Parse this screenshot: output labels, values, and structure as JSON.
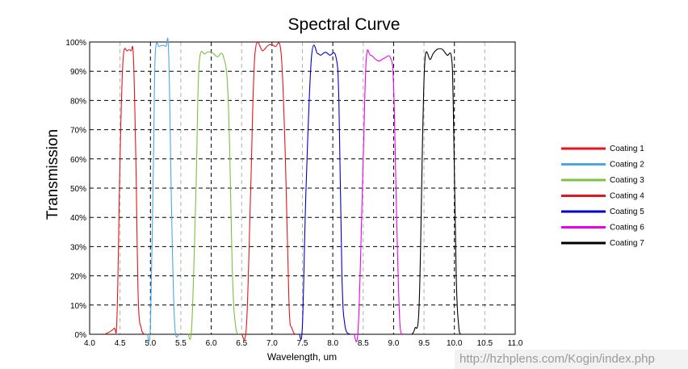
{
  "chart_data": {
    "type": "line",
    "title": "Spectral Curve",
    "xlabel": "Wavelength, um",
    "ylabel": "Transmission",
    "xlim": [
      4.0,
      11.0
    ],
    "ylim": [
      0,
      100
    ],
    "x_ticks": [
      "4.0",
      "4.5",
      "5.0",
      "5.5",
      "6.0",
      "6.5",
      "7.0",
      "7.5",
      "8.0",
      "8.5",
      "9.0",
      "9.5",
      "10.0",
      "10.5",
      "11.0"
    ],
    "y_ticks": [
      "0%",
      "10%",
      "20%",
      "30%",
      "40%",
      "50%",
      "60%",
      "70%",
      "80%",
      "90%",
      "100%"
    ],
    "grid": true,
    "legend_position": "right",
    "series": [
      {
        "name": "Coating 1",
        "color": "#e8141c",
        "points": [
          [
            4.25,
            0
          ],
          [
            4.4,
            2
          ],
          [
            4.45,
            6
          ],
          [
            4.5,
            60
          ],
          [
            4.55,
            94
          ],
          [
            4.62,
            97
          ],
          [
            4.68,
            97
          ],
          [
            4.72,
            95
          ],
          [
            4.76,
            60
          ],
          [
            4.8,
            12
          ],
          [
            4.85,
            2
          ],
          [
            4.9,
            0
          ]
        ]
      },
      {
        "name": "Coating 2",
        "color": "#4aa8e8",
        "points": [
          [
            4.95,
            0
          ],
          [
            5.0,
            3
          ],
          [
            5.05,
            60
          ],
          [
            5.08,
            96
          ],
          [
            5.15,
            98.5
          ],
          [
            5.25,
            98.5
          ],
          [
            5.3,
            96
          ],
          [
            5.35,
            40
          ],
          [
            5.4,
            3
          ],
          [
            5.47,
            0
          ]
        ]
      },
      {
        "name": "Coating 3",
        "color": "#7cc142",
        "points": [
          [
            5.62,
            0
          ],
          [
            5.68,
            3
          ],
          [
            5.75,
            50
          ],
          [
            5.8,
            92
          ],
          [
            5.9,
            96
          ],
          [
            6.0,
            96.5
          ],
          [
            6.1,
            95
          ],
          [
            6.2,
            95
          ],
          [
            6.28,
            80
          ],
          [
            6.35,
            20
          ],
          [
            6.4,
            3
          ],
          [
            6.45,
            0
          ]
        ]
      },
      {
        "name": "Coating 4",
        "color": "#e8141c",
        "points": [
          [
            6.5,
            0
          ],
          [
            6.58,
            3
          ],
          [
            6.65,
            50
          ],
          [
            6.72,
            96
          ],
          [
            6.85,
            97
          ],
          [
            6.95,
            99
          ],
          [
            7.05,
            98.5
          ],
          [
            7.15,
            96
          ],
          [
            7.22,
            60
          ],
          [
            7.28,
            10
          ],
          [
            7.33,
            2
          ],
          [
            7.38,
            0
          ]
        ]
      },
      {
        "name": "Coating 5",
        "color": "#0000cc",
        "points": [
          [
            7.45,
            0
          ],
          [
            7.5,
            3
          ],
          [
            7.56,
            50
          ],
          [
            7.65,
            95
          ],
          [
            7.75,
            96
          ],
          [
            7.8,
            95.5
          ],
          [
            7.88,
            96.5
          ],
          [
            7.95,
            95.5
          ],
          [
            8.05,
            95
          ],
          [
            8.1,
            80
          ],
          [
            8.15,
            20
          ],
          [
            8.2,
            3
          ],
          [
            8.28,
            0
          ]
        ]
      },
      {
        "name": "Coating 6",
        "color": "#ee00ee",
        "points": [
          [
            8.35,
            0
          ],
          [
            8.42,
            3
          ],
          [
            8.5,
            60
          ],
          [
            8.55,
            94
          ],
          [
            8.62,
            95.5
          ],
          [
            8.75,
            93.5
          ],
          [
            8.85,
            94.5
          ],
          [
            8.95,
            94.5
          ],
          [
            9.0,
            85
          ],
          [
            9.05,
            40
          ],
          [
            9.1,
            5
          ],
          [
            9.15,
            0
          ]
        ]
      },
      {
        "name": "Coating 7",
        "color": "#000000",
        "points": [
          [
            9.3,
            0
          ],
          [
            9.35,
            2
          ],
          [
            9.42,
            10
          ],
          [
            9.48,
            70
          ],
          [
            9.52,
            95
          ],
          [
            9.6,
            94
          ],
          [
            9.65,
            96
          ],
          [
            9.72,
            97.5
          ],
          [
            9.8,
            97.5
          ],
          [
            9.88,
            95.5
          ],
          [
            9.95,
            95
          ],
          [
            9.98,
            80
          ],
          [
            10.03,
            20
          ],
          [
            10.07,
            3
          ],
          [
            10.1,
            0
          ]
        ]
      }
    ]
  },
  "watermark": "http://hzhplens.com/Kogin/index.php"
}
